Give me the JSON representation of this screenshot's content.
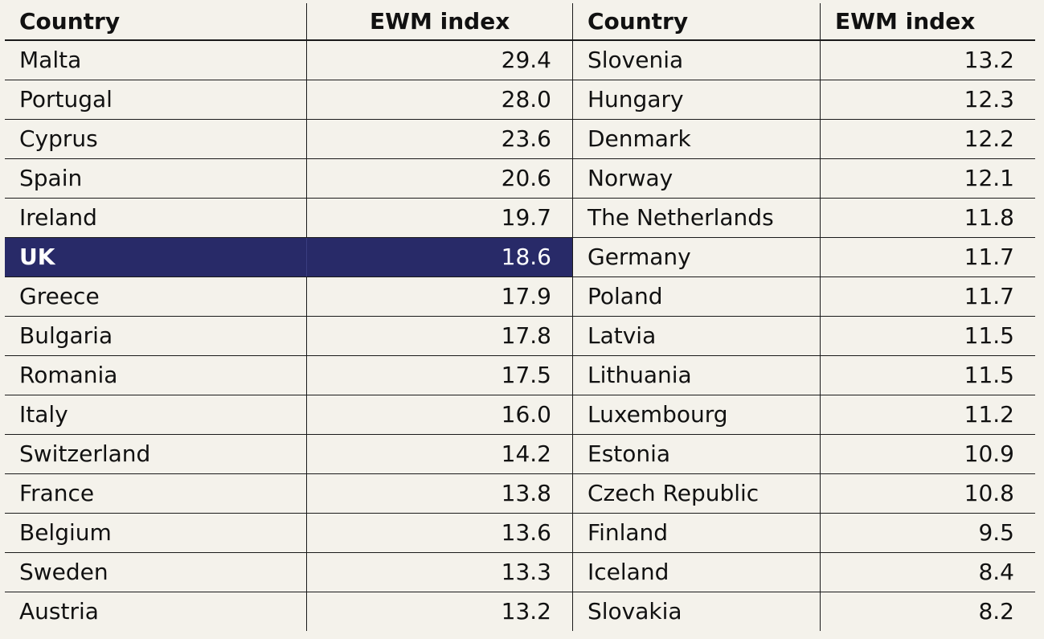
{
  "table": {
    "headers": {
      "country": "Country",
      "index": "EWM index"
    },
    "left_rows": [
      {
        "country": "Malta",
        "value": "29.4"
      },
      {
        "country": "Portugal",
        "value": "28.0"
      },
      {
        "country": "Cyprus",
        "value": "23.6"
      },
      {
        "country": "Spain",
        "value": "20.6"
      },
      {
        "country": "Ireland",
        "value": "19.7"
      },
      {
        "country": "UK",
        "value": "18.6",
        "highlight": true
      },
      {
        "country": "Greece",
        "value": "17.9"
      },
      {
        "country": "Bulgaria",
        "value": "17.8"
      },
      {
        "country": "Romania",
        "value": "17.5"
      },
      {
        "country": "Italy",
        "value": "16.0"
      },
      {
        "country": "Switzerland",
        "value": "14.2"
      },
      {
        "country": "France",
        "value": "13.8"
      },
      {
        "country": "Belgium",
        "value": "13.6"
      },
      {
        "country": "Sweden",
        "value": "13.3"
      },
      {
        "country": "Austria",
        "value": "13.2"
      }
    ],
    "right_rows": [
      {
        "country": "Slovenia",
        "value": "13.2"
      },
      {
        "country": "Hungary",
        "value": "12.3"
      },
      {
        "country": "Denmark",
        "value": "12.2"
      },
      {
        "country": "Norway",
        "value": "12.1"
      },
      {
        "country": "The Netherlands",
        "value": "11.8"
      },
      {
        "country": "Germany",
        "value": "11.7"
      },
      {
        "country": "Poland",
        "value": "11.7"
      },
      {
        "country": "Latvia",
        "value": "11.5"
      },
      {
        "country": "Lithuania",
        "value": "11.5"
      },
      {
        "country": "Luxembourg",
        "value": "11.2"
      },
      {
        "country": "Estonia",
        "value": "10.9"
      },
      {
        "country": "Czech Republic",
        "value": "10.8"
      },
      {
        "country": "Finland",
        "value": "9.5"
      },
      {
        "country": "Iceland",
        "value": "8.4"
      },
      {
        "country": "Slovakia",
        "value": "8.2"
      }
    ]
  },
  "colors": {
    "background": "#f4f2eb",
    "highlight": "#282a68",
    "rule": "#1a1a1a"
  }
}
